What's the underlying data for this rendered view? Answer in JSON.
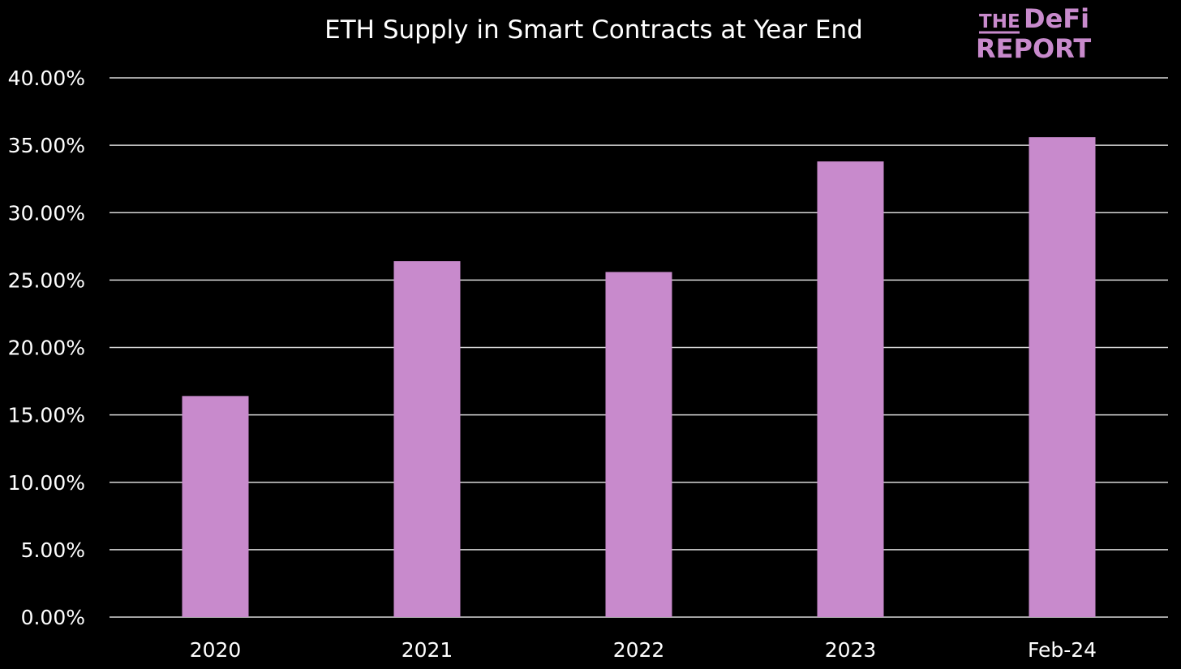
{
  "chart_data": {
    "type": "bar",
    "title": "ETH Supply in Smart Contracts at Year End",
    "categories": [
      "2020",
      "2021",
      "2022",
      "2023",
      "Feb-24"
    ],
    "values": [
      16.4,
      26.4,
      25.6,
      33.8,
      35.6
    ],
    "value_unit": "%",
    "ylim": [
      0,
      40
    ],
    "yticks": [
      0,
      5,
      10,
      15,
      20,
      25,
      30,
      35,
      40
    ],
    "ytick_labels": [
      "0.00%",
      "5.00%",
      "10.00%",
      "15.00%",
      "20.00%",
      "25.00%",
      "30.00%",
      "35.00%",
      "40.00%"
    ],
    "xlabel": "",
    "ylabel": "",
    "grid": true,
    "legend": "none",
    "colors": {
      "background": "#000000",
      "bar": "#c88acc",
      "grid": "#d9d9d9",
      "text": "#ffffff"
    }
  },
  "logo": {
    "line1_a": "THE",
    "line1_b": "DeFi",
    "line2": "REPORT",
    "color": "#c88acc"
  }
}
